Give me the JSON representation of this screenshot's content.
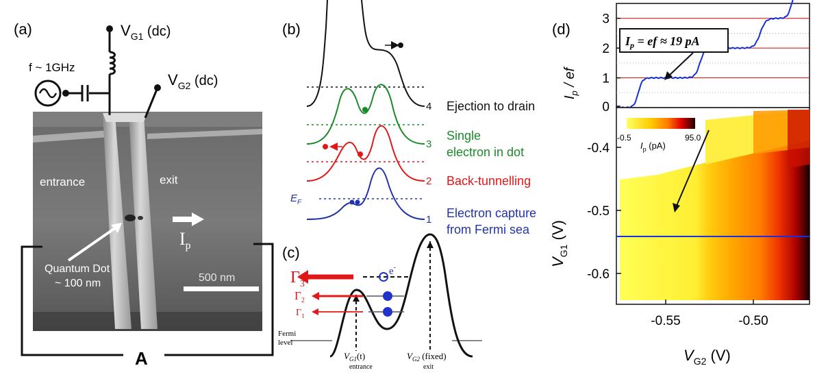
{
  "panels": {
    "a": {
      "label": "(a)",
      "vg1": "V",
      "vg1_sub": "G1",
      "vg1_suffix": " (dc)",
      "vg2": "V",
      "vg2_sub": "G2",
      "vg2_suffix": " (dc)",
      "freq": "f ~ 1GHz",
      "entrance": "entrance",
      "exit": "exit",
      "ip": "I",
      "ip_sub": "p",
      "qd_line1": "Quantum Dot",
      "qd_line2": "~ 100 nm",
      "scale": "500 nm",
      "ammeter": "A"
    },
    "b": {
      "label": "(b)",
      "ef": "E",
      "ef_sub": "F",
      "steps": [
        {
          "num": "4",
          "text1": "Ejection to drain",
          "text2": "",
          "color": "#111111"
        },
        {
          "num": "3",
          "text1": "Single",
          "text2": "electron in dot",
          "color": "#1a8a2a"
        },
        {
          "num": "2",
          "text1": "Back-tunnelling",
          "text2": "",
          "color": "#e01818"
        },
        {
          "num": "1",
          "text1": "Electron capture",
          "text2": "from Fermi sea",
          "color": "#2233aa"
        }
      ]
    },
    "c": {
      "label": "(c)",
      "gamma3": "Γ",
      "gamma3_sub": "3",
      "gamma2": "Γ",
      "gamma2_sub": "2",
      "gamma1": "Γ",
      "gamma1_sub": "1",
      "electron": "e",
      "electron_sup": "-",
      "fermi1": "Fermi",
      "fermi2": "level",
      "vg1t": "V",
      "vg1t_sub": "G1",
      "vg1t_suffix": "(t)",
      "vg1t_under": "entrance",
      "vg2f": "V",
      "vg2f_sub": "G2",
      "vg2f_suffix": " (fixed)",
      "vg2f_under": "exit"
    },
    "d": {
      "label": "(d)",
      "annotation": "I",
      "annotation_sub": "p",
      "annotation_rest": " = ef ≈ 19 pA",
      "top_ylabel": "I",
      "top_ylabel_sub": "p",
      "top_ylabel_rest": " / ef",
      "top_yticks": [
        "0",
        "1",
        "2",
        "3"
      ],
      "colorbar_min": "-0.5",
      "colorbar_max": "95.0",
      "colorbar_label": "I",
      "colorbar_label_sub": "p",
      "colorbar_label_rest": " (pA)",
      "ylabel": "V",
      "ylabel_sub": "G1",
      "ylabel_rest": " (V)",
      "yticks": [
        "-0.4",
        "-0.5",
        "-0.6"
      ],
      "xlabel": "V",
      "xlabel_sub": "G2",
      "xlabel_rest": " (V)",
      "xticks": [
        "-0.55",
        "-0.50"
      ]
    }
  },
  "chart_data": {
    "type": "line",
    "x_range": [
      -0.57,
      -0.48
    ],
    "ylim": [
      0,
      3.5
    ],
    "ylabel": "Ip / ef",
    "plateaus": [
      0,
      1,
      2,
      3
    ],
    "xlabel": "VG2 (V)",
    "colors": {
      "curve": "#1530d8",
      "grid": "#d40000"
    }
  }
}
